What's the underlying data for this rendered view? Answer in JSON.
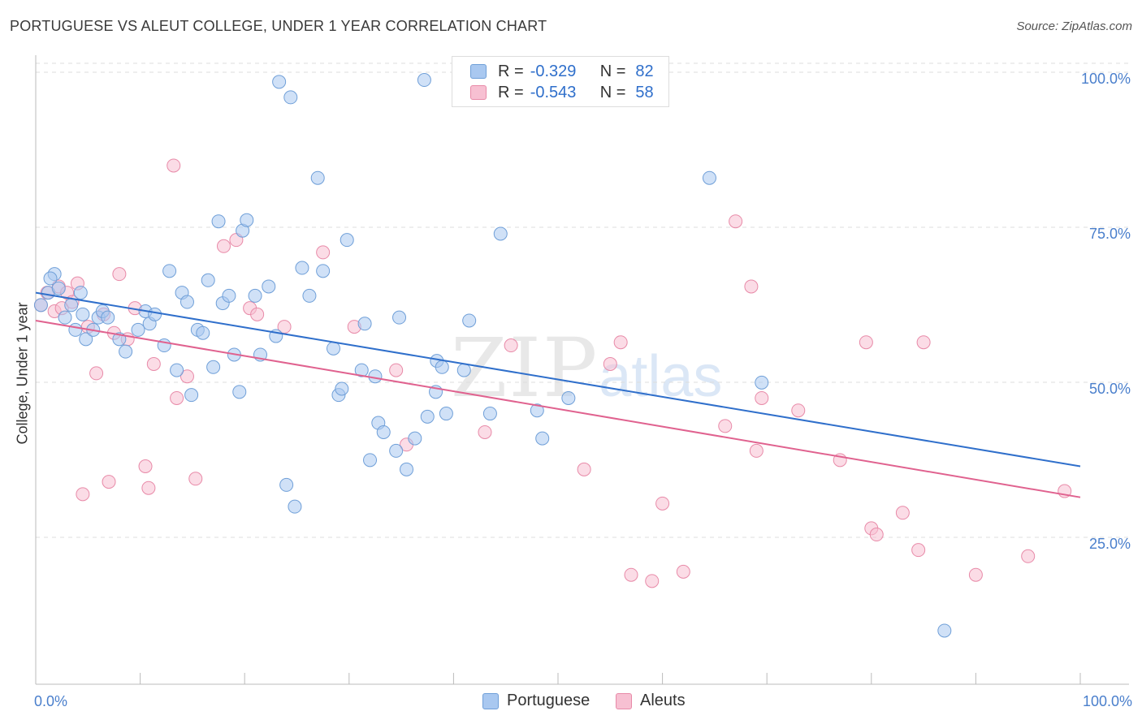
{
  "title": "PORTUGUESE VS ALEUT COLLEGE, UNDER 1 YEAR CORRELATION CHART",
  "source": "Source: ZipAtlas.com",
  "watermark": {
    "zip": "ZIP",
    "atlas": "atlas"
  },
  "legend": {
    "r_label": "R =",
    "n_label": "N =",
    "rows": [
      {
        "r": "-0.329",
        "n": "82"
      },
      {
        "r": "-0.543",
        "n": "58"
      }
    ]
  },
  "colors": {
    "portuguese_fill": "#a9c8f0",
    "portuguese_stroke": "#6f9fd8",
    "portuguese_line": "#2f6fcb",
    "aleuts_fill": "#f7c0d2",
    "aleuts_stroke": "#e88aa8",
    "aleuts_line": "#e0628f",
    "tick_label": "#4a7fcc"
  },
  "chart_data": {
    "type": "scatter",
    "title": "PORTUGUESE VS ALEUT COLLEGE, UNDER 1 YEAR CORRELATION CHART",
    "xlabel": "",
    "ylabel": "College, Under 1 year",
    "xlim": [
      0,
      100
    ],
    "ylim": [
      5,
      105
    ],
    "x_tick_labels": [
      "0.0%",
      "100.0%"
    ],
    "y_ticks": [
      25,
      50,
      75,
      100
    ],
    "y_tick_labels": [
      "25.0%",
      "50.0%",
      "75.0%",
      "100.0%"
    ],
    "grid": "horizontal dashed",
    "legend_position": "top-center",
    "series": [
      {
        "name": "Portuguese",
        "trend": {
          "x": [
            0,
            100
          ],
          "y": [
            65.5,
            37.5
          ]
        },
        "points": [
          [
            0.5,
            63.5
          ],
          [
            1.2,
            65.5
          ],
          [
            1.8,
            68.5
          ],
          [
            1.4,
            67.8
          ],
          [
            2.2,
            66.2
          ],
          [
            2.8,
            61.5
          ],
          [
            3.4,
            63.5
          ],
          [
            3.8,
            59.5
          ],
          [
            4.3,
            65.5
          ],
          [
            4.5,
            62.0
          ],
          [
            4.8,
            58.0
          ],
          [
            5.5,
            59.5
          ],
          [
            6.0,
            61.5
          ],
          [
            6.4,
            62.5
          ],
          [
            6.9,
            61.5
          ],
          [
            8.0,
            58.0
          ],
          [
            8.6,
            56.0
          ],
          [
            9.8,
            59.5
          ],
          [
            10.5,
            62.5
          ],
          [
            10.9,
            60.5
          ],
          [
            11.4,
            62.0
          ],
          [
            12.3,
            57.0
          ],
          [
            12.8,
            69.0
          ],
          [
            13.5,
            53.0
          ],
          [
            14.0,
            65.5
          ],
          [
            14.5,
            64.0
          ],
          [
            14.9,
            49.0
          ],
          [
            15.5,
            59.5
          ],
          [
            16.0,
            59.0
          ],
          [
            16.5,
            67.5
          ],
          [
            17.0,
            53.5
          ],
          [
            17.5,
            77.0
          ],
          [
            17.9,
            63.8
          ],
          [
            18.5,
            65.0
          ],
          [
            19.0,
            55.5
          ],
          [
            19.5,
            49.5
          ],
          [
            19.8,
            75.5
          ],
          [
            20.2,
            77.2
          ],
          [
            21.0,
            65.0
          ],
          [
            21.5,
            55.5
          ],
          [
            22.3,
            66.5
          ],
          [
            23.0,
            58.5
          ],
          [
            23.3,
            99.5
          ],
          [
            24.0,
            34.5
          ],
          [
            24.4,
            97.0
          ],
          [
            24.8,
            31.0
          ],
          [
            25.5,
            69.5
          ],
          [
            26.2,
            65.0
          ],
          [
            27.0,
            84.0
          ],
          [
            27.5,
            69.0
          ],
          [
            28.5,
            56.5
          ],
          [
            29.0,
            49.0
          ],
          [
            29.3,
            50.0
          ],
          [
            29.8,
            74.0
          ],
          [
            31.2,
            53.0
          ],
          [
            31.5,
            60.5
          ],
          [
            32.0,
            38.5
          ],
          [
            32.5,
            52.0
          ],
          [
            32.8,
            44.5
          ],
          [
            33.3,
            43.0
          ],
          [
            34.5,
            40.0
          ],
          [
            34.8,
            61.5
          ],
          [
            35.5,
            37.0
          ],
          [
            36.3,
            42.0
          ],
          [
            37.5,
            45.5
          ],
          [
            37.2,
            99.8
          ],
          [
            38.3,
            49.5
          ],
          [
            38.4,
            54.5
          ],
          [
            38.9,
            53.5
          ],
          [
            39.3,
            46.0
          ],
          [
            41.0,
            53.0
          ],
          [
            41.5,
            61.0
          ],
          [
            43.5,
            46.0
          ],
          [
            44.5,
            75.0
          ],
          [
            48.0,
            46.5
          ],
          [
            48.5,
            42.0
          ],
          [
            51.0,
            48.5
          ],
          [
            64.5,
            84.0
          ],
          [
            69.5,
            51.0
          ],
          [
            87.0,
            11.0
          ]
        ]
      },
      {
        "name": "Aleuts",
        "trend": {
          "x": [
            0,
            100
          ],
          "y": [
            61.0,
            32.5
          ]
        },
        "points": [
          [
            0.5,
            63.5
          ],
          [
            1.1,
            65.5
          ],
          [
            1.8,
            62.5
          ],
          [
            2.2,
            66.5
          ],
          [
            2.5,
            63.0
          ],
          [
            3.0,
            65.5
          ],
          [
            3.5,
            64.0
          ],
          [
            4.0,
            67.0
          ],
          [
            4.5,
            33.0
          ],
          [
            5.0,
            60.0
          ],
          [
            5.8,
            52.5
          ],
          [
            6.5,
            62.0
          ],
          [
            7.0,
            35.0
          ],
          [
            7.5,
            59.0
          ],
          [
            8.0,
            68.5
          ],
          [
            8.8,
            58.0
          ],
          [
            9.5,
            63.0
          ],
          [
            10.5,
            37.5
          ],
          [
            10.8,
            34.0
          ],
          [
            11.3,
            54.0
          ],
          [
            13.2,
            86.0
          ],
          [
            13.5,
            48.5
          ],
          [
            14.5,
            52.0
          ],
          [
            15.3,
            35.5
          ],
          [
            18.0,
            73.0
          ],
          [
            19.2,
            74.0
          ],
          [
            20.5,
            63.0
          ],
          [
            21.2,
            62.0
          ],
          [
            23.8,
            60.0
          ],
          [
            27.5,
            72.0
          ],
          [
            30.5,
            60.0
          ],
          [
            34.5,
            53.0
          ],
          [
            35.5,
            41.0
          ],
          [
            43.0,
            43.0
          ],
          [
            45.5,
            57.0
          ],
          [
            52.5,
            37.0
          ],
          [
            55.0,
            54.0
          ],
          [
            56.0,
            57.5
          ],
          [
            57.0,
            20.0
          ],
          [
            59.0,
            19.0
          ],
          [
            60.0,
            31.5
          ],
          [
            62.0,
            20.5
          ],
          [
            66.0,
            44.0
          ],
          [
            67.0,
            77.0
          ],
          [
            68.5,
            66.5
          ],
          [
            69.5,
            48.5
          ],
          [
            69.0,
            40.0
          ],
          [
            73.0,
            46.5
          ],
          [
            77.0,
            38.5
          ],
          [
            79.5,
            57.5
          ],
          [
            80.0,
            27.5
          ],
          [
            80.5,
            26.5
          ],
          [
            83.0,
            30.0
          ],
          [
            84.5,
            24.0
          ],
          [
            85.0,
            57.5
          ],
          [
            90.0,
            20.0
          ],
          [
            95.0,
            23.0
          ],
          [
            98.5,
            33.5
          ]
        ]
      }
    ]
  }
}
